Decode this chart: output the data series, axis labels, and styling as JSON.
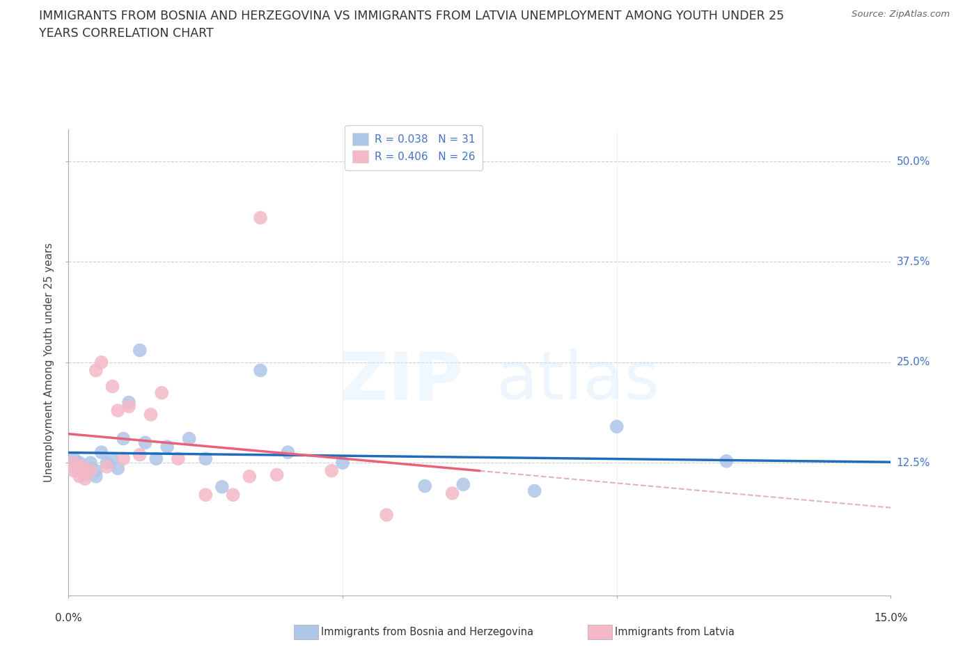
{
  "title_line1": "IMMIGRANTS FROM BOSNIA AND HERZEGOVINA VS IMMIGRANTS FROM LATVIA UNEMPLOYMENT AMONG YOUTH UNDER 25",
  "title_line2": "YEARS CORRELATION CHART",
  "source": "Source: ZipAtlas.com",
  "ylabel": "Unemployment Among Youth under 25 years",
  "legend1_label": "Immigrants from Bosnia and Herzegovina",
  "legend2_label": "Immigrants from Latvia",
  "legend1_R": "R = 0.038",
  "legend1_N": "N = 31",
  "legend2_R": "R = 0.406",
  "legend2_N": "N = 26",
  "color_bosnia": "#aec6e8",
  "color_latvia": "#f4b8c8",
  "color_bosnia_line": "#1f6bbd",
  "color_latvia_line": "#e8627a",
  "color_trendline_dashed": "#d4a0b0",
  "xmin": 0.0,
  "xmax": 0.15,
  "ymin": -0.04,
  "ymax": 0.54,
  "ytick_values": [
    0.125,
    0.25,
    0.375,
    0.5
  ],
  "ytick_labels": [
    "12.5%",
    "25.0%",
    "37.5%",
    "50.0%"
  ],
  "xtick_labels": [
    "0.0%",
    "15.0%"
  ],
  "watermark_left": "ZIP",
  "watermark_right": "atlas",
  "bosnia_x": [
    0.001,
    0.001,
    0.002,
    0.002,
    0.003,
    0.003,
    0.004,
    0.004,
    0.005,
    0.005,
    0.006,
    0.007,
    0.008,
    0.009,
    0.01,
    0.011,
    0.013,
    0.014,
    0.016,
    0.018,
    0.022,
    0.025,
    0.028,
    0.035,
    0.04,
    0.05,
    0.065,
    0.072,
    0.085,
    0.1,
    0.12
  ],
  "bosnia_y": [
    0.13,
    0.12,
    0.125,
    0.118,
    0.115,
    0.11,
    0.125,
    0.118,
    0.115,
    0.108,
    0.138,
    0.125,
    0.13,
    0.118,
    0.155,
    0.2,
    0.265,
    0.15,
    0.13,
    0.145,
    0.155,
    0.13,
    0.095,
    0.24,
    0.138,
    0.125,
    0.096,
    0.098,
    0.09,
    0.17,
    0.127
  ],
  "latvia_x": [
    0.001,
    0.001,
    0.002,
    0.002,
    0.003,
    0.003,
    0.004,
    0.005,
    0.006,
    0.007,
    0.008,
    0.009,
    0.01,
    0.011,
    0.013,
    0.015,
    0.017,
    0.02,
    0.025,
    0.03,
    0.033,
    0.038,
    0.048,
    0.058,
    0.07,
    0.035
  ],
  "latvia_y": [
    0.125,
    0.115,
    0.12,
    0.108,
    0.118,
    0.105,
    0.115,
    0.24,
    0.25,
    0.12,
    0.22,
    0.19,
    0.13,
    0.195,
    0.135,
    0.185,
    0.212,
    0.13,
    0.085,
    0.085,
    0.108,
    0.11,
    0.115,
    0.06,
    0.087,
    0.43
  ]
}
